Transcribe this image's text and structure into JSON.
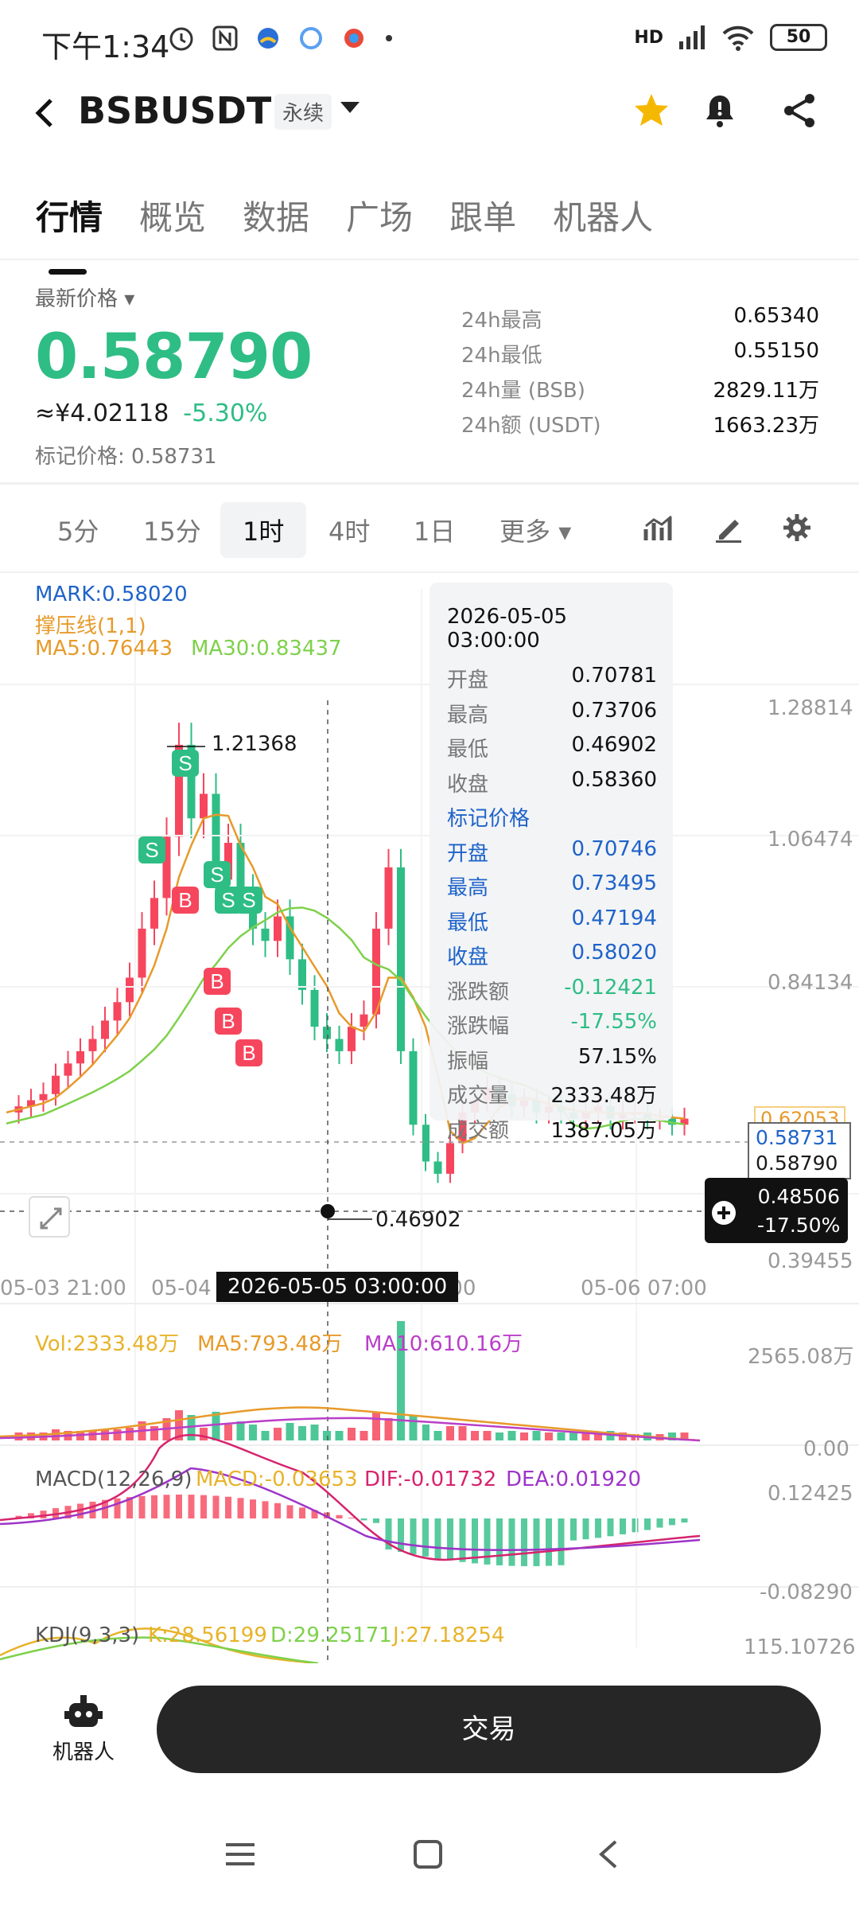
{
  "status": {
    "time": "下午1:34",
    "battery": "50",
    "network": "HD"
  },
  "header": {
    "symbol": "BSBUSDT",
    "contract_type": "永续"
  },
  "tabs": [
    "行情",
    "概览",
    "数据",
    "广场",
    "跟单",
    "机器人"
  ],
  "price": {
    "label": "最新价格",
    "last": "0.58790",
    "cny": "≈¥4.02118",
    "change": "-5.30%",
    "mark_label": "标记价格:",
    "mark_value": "0.58731"
  },
  "stats": [
    {
      "k": "24h最高",
      "v": "0.65340"
    },
    {
      "k": "24h最低",
      "v": "0.55150"
    },
    {
      "k": "24h量 (BSB)",
      "v": "2829.11万"
    },
    {
      "k": "24h额 (USDT)",
      "v": "1663.23万"
    }
  ],
  "timeframes": [
    "5分",
    "15分",
    "1时",
    "4时",
    "1日",
    "更多"
  ],
  "selected_timeframe": "1时",
  "indicators": {
    "mark": "MARK:0.58020",
    "support": "撑压线(1,1)",
    "ma5": "MA5:0.76443",
    "ma30": "MA30:0.83437",
    "high_marker": "1.21368",
    "low_marker": "0.46902"
  },
  "y_axis": [
    "1.28814",
    "1.06474",
    "0.84134",
    "0.39455"
  ],
  "price_tags": {
    "faded": "0.62053",
    "mark": "0.58731",
    "last": "0.58790",
    "cursor_price": "0.48506",
    "cursor_pct": "-17.50%"
  },
  "x_axis": [
    "05-03 21:00",
    "05-04",
    "1:00",
    "05-06 07:00"
  ],
  "crosshair_date": "2026-05-05 03:00:00",
  "tooltip": {
    "date": "2026-05-05 03:00:00",
    "rows": [
      {
        "k": "开盘",
        "v": "0.70781"
      },
      {
        "k": "最高",
        "v": "0.73706"
      },
      {
        "k": "最低",
        "v": "0.46902"
      },
      {
        "k": "收盘",
        "v": "0.58360"
      }
    ],
    "mark_title": "标记价格",
    "mark_rows": [
      {
        "k": "开盘",
        "v": "0.70746"
      },
      {
        "k": "最高",
        "v": "0.73495"
      },
      {
        "k": "最低",
        "v": "0.47194"
      },
      {
        "k": "收盘",
        "v": "0.58020"
      }
    ],
    "tail_rows": [
      {
        "k": "涨跌额",
        "v": "-0.12421"
      },
      {
        "k": "涨跌幅",
        "v": "-17.55%"
      },
      {
        "k": "振幅",
        "v": "57.15%"
      },
      {
        "k": "成交量",
        "v": "2333.48万"
      },
      {
        "k": "成交额",
        "v": "1387.05万"
      }
    ]
  },
  "volume": {
    "vol": "Vol:2333.48万",
    "ma5": "MA5:793.48万",
    "ma10": "MA10:610.16万",
    "max": "2565.08万",
    "min": "0.00"
  },
  "macd": {
    "name": "MACD(12,26,9)",
    "macd": "MACD:-0.03653",
    "dif": "DIF:-0.01732",
    "dea": "DEA:0.01920",
    "max": "0.12425",
    "min": "-0.08290"
  },
  "kdj": {
    "name": "KDJ(9,3,3)",
    "k": "K:28.56199",
    "d": "D:29.25171",
    "j": "J:27.18254",
    "max": "115.10726"
  },
  "signals": {
    "sell": "S",
    "buy": "B"
  },
  "bottom": {
    "robot": "机器人",
    "trade": "交易"
  },
  "colors": {
    "up": "#2ebd85",
    "down": "#f6465d",
    "mark_blue": "#1e63c9",
    "ma5": "#e79a2a",
    "ma30": "#7ed14b"
  }
}
